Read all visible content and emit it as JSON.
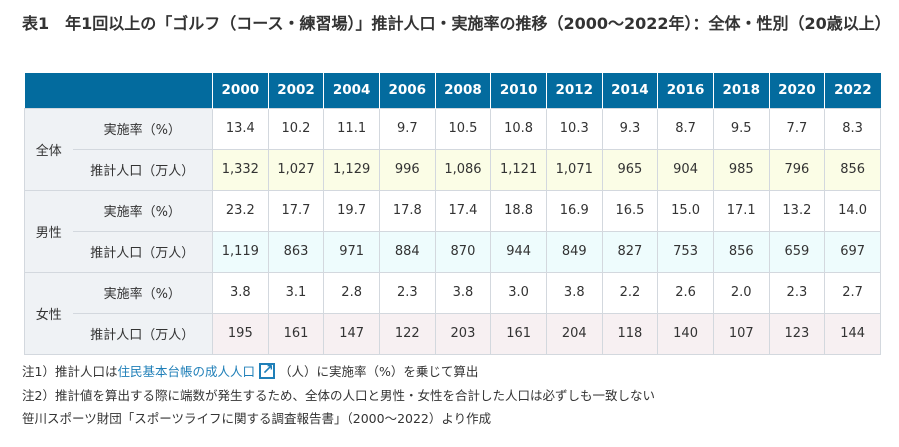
{
  "title": "表1　年1回以上の「ゴルフ（コース・練習場）」推計人口・実施率の推移（2000〜2022年）：全体・性別（20歳以上）",
  "table": {
    "years": [
      "2000",
      "2002",
      "2004",
      "2006",
      "2008",
      "2010",
      "2012",
      "2014",
      "2016",
      "2018",
      "2020",
      "2022"
    ],
    "groups": [
      {
        "name": "全体",
        "rows": [
          {
            "label": "実施率（%）",
            "values": [
              "13.4",
              "10.2",
              "11.1",
              "9.7",
              "10.5",
              "10.8",
              "10.3",
              "9.3",
              "8.7",
              "9.5",
              "7.7",
              "8.3"
            ]
          },
          {
            "label": "推計人口（万人）",
            "values": [
              "1,332",
              "1,027",
              "1,129",
              "996",
              "1,086",
              "1,121",
              "1,071",
              "965",
              "904",
              "985",
              "796",
              "856"
            ]
          }
        ]
      },
      {
        "name": "男性",
        "rows": [
          {
            "label": "実施率（%）",
            "values": [
              "23.2",
              "17.7",
              "19.7",
              "17.8",
              "17.4",
              "18.8",
              "16.9",
              "16.5",
              "15.0",
              "17.1",
              "13.2",
              "14.0"
            ]
          },
          {
            "label": "推計人口（万人）",
            "values": [
              "1,119",
              "863",
              "971",
              "884",
              "870",
              "944",
              "849",
              "827",
              "753",
              "856",
              "659",
              "697"
            ]
          }
        ]
      },
      {
        "name": "女性",
        "rows": [
          {
            "label": "実施率（%）",
            "values": [
              "3.8",
              "3.1",
              "2.8",
              "2.3",
              "3.8",
              "3.0",
              "3.8",
              "2.2",
              "2.6",
              "2.0",
              "2.3",
              "2.7"
            ]
          },
          {
            "label": "推計人口（万人）",
            "values": [
              "195",
              "161",
              "147",
              "122",
              "203",
              "161",
              "204",
              "118",
              "140",
              "107",
              "123",
              "144"
            ]
          }
        ]
      }
    ]
  },
  "notes": {
    "note1_prefix": "注1）推計人口は",
    "note1_link": "住民基本台帳の成人人口",
    "note1_suffix": "（人）に実施率（%）を乗じて算出",
    "note2": "注2）推計値を算出する際に端数が発生するため、全体の人口と男性・女性を合計した人口は必ずしも一致しない",
    "source": "笹川スポーツ財団「スポーツライフに関する調査報告書」（2000〜2022）より作成"
  },
  "colors": {
    "header": "#036b9e",
    "label_bg": "#eff2f5",
    "all_pop": "#fbfde6",
    "male_pop": "#eefcfd",
    "female_pop": "#f7f0f2",
    "link": "#1f7fb8"
  }
}
